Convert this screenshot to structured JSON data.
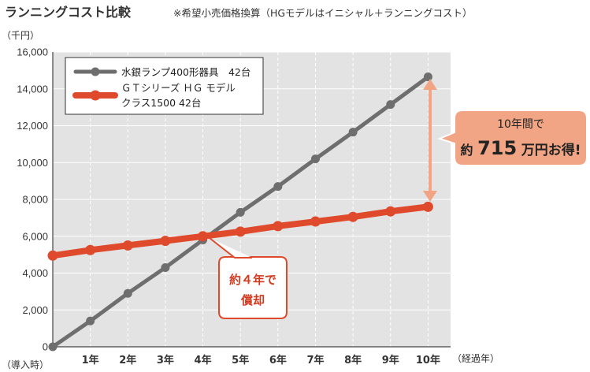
{
  "title": "ランニングコスト比較",
  "note": "※希望小売価格換算（HGモデルはイニシャル＋ランニングコスト）",
  "unit_label": "（千円）",
  "x_end_label": "（経過年）",
  "x_start_label": "（導入時）",
  "colors": {
    "mercury": "#6e6e6e",
    "gt": "#e04a2c",
    "plot_bg": "#e3e3e3",
    "callout_fill": "#f2a585",
    "arrow": "#f2a585"
  },
  "chart_data": {
    "type": "line",
    "x": [
      0,
      1,
      2,
      3,
      4,
      5,
      6,
      7,
      8,
      9,
      10
    ],
    "x_tick_labels": [
      "0",
      "1年",
      "2年",
      "3年",
      "4年",
      "5年",
      "6年",
      "7年",
      "8年",
      "9年",
      "10年"
    ],
    "y_tick_labels": [
      "0",
      "2,000",
      "4,000",
      "6,000",
      "8,000",
      "10,000",
      "12,000",
      "14,000",
      "16,000"
    ],
    "ylim": [
      0,
      16000
    ],
    "xlim": [
      0,
      10
    ],
    "grid": true,
    "legend_position": "top-left",
    "series": [
      {
        "name": "水銀ランプ400形器具　42台",
        "color": "#6e6e6e",
        "values": [
          0,
          1400,
          2900,
          4300,
          5800,
          7300,
          8700,
          10200,
          11650,
          13150,
          14650
        ]
      },
      {
        "name": "ＧＴシリーズ ＨＧ モデル クラス1500 42台",
        "name_lines": [
          "ＧＴシリーズ ＨＧ モデル",
          "クラス1500 42台"
        ],
        "color": "#e04a2c",
        "values": [
          4950,
          5250,
          5500,
          5750,
          6000,
          6250,
          6550,
          6800,
          7050,
          7350,
          7600
        ]
      }
    ],
    "annotations": {
      "break_even": [
        "約４年で",
        "償却"
      ],
      "savings_line1": "10年間で",
      "savings_prefix": "約",
      "savings_number": "715",
      "savings_suffix": "万円お得!"
    }
  }
}
